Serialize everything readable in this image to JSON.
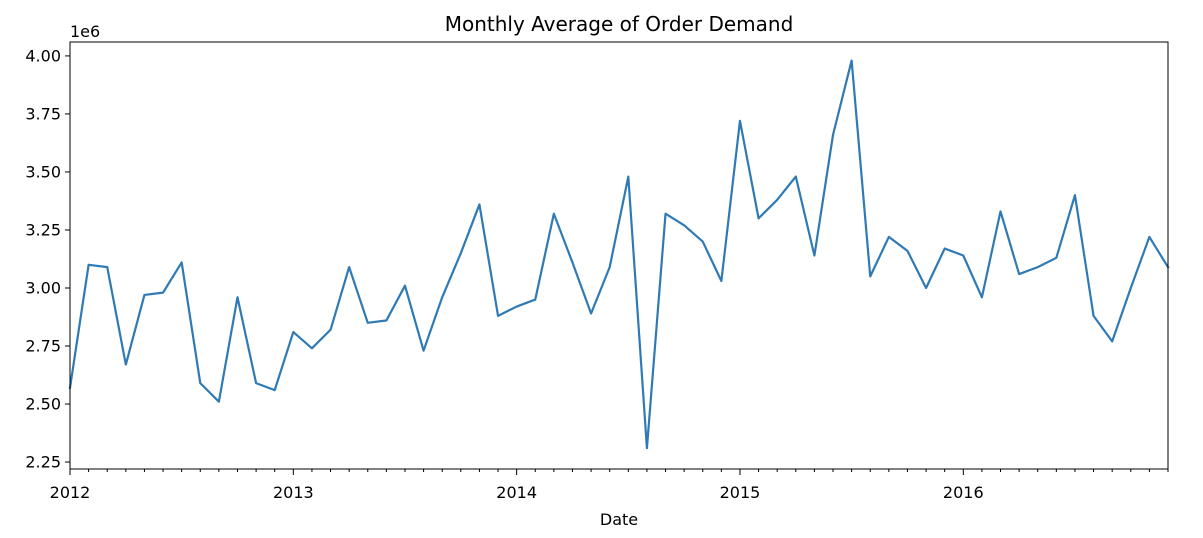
{
  "chart_data": {
    "type": "line",
    "title": "Monthly Average of Order Demand",
    "xlabel": "Date",
    "ylabel": "",
    "y_offset_label": "1e6",
    "y_scale_factor": 1000000,
    "xlim": [
      "2012-01",
      "2016-12"
    ],
    "ylim": [
      2.22,
      4.06
    ],
    "x_ticks": [
      "2012",
      "2013",
      "2014",
      "2015",
      "2016"
    ],
    "y_ticks": [
      "2.25",
      "2.50",
      "2.75",
      "3.00",
      "3.25",
      "3.50",
      "3.75",
      "4.00"
    ],
    "grid": false,
    "legend": "none",
    "color": "#2f7ab5",
    "series": [
      {
        "x": [
          "2012-01",
          "2012-02",
          "2012-03",
          "2012-04",
          "2012-05",
          "2012-06",
          "2012-07",
          "2012-08",
          "2012-09",
          "2012-10",
          "2012-11",
          "2012-12",
          "2013-01",
          "2013-02",
          "2013-03",
          "2013-04",
          "2013-05",
          "2013-06",
          "2013-07",
          "2013-08",
          "2013-09",
          "2013-10",
          "2013-11",
          "2013-12",
          "2014-01",
          "2014-02",
          "2014-03",
          "2014-04",
          "2014-05",
          "2014-06",
          "2014-07",
          "2014-08",
          "2014-09",
          "2014-10",
          "2014-11",
          "2014-12",
          "2015-01",
          "2015-02",
          "2015-03",
          "2015-04",
          "2015-05",
          "2015-06",
          "2015-07",
          "2015-08",
          "2015-09",
          "2015-10",
          "2015-11",
          "2015-12",
          "2016-01",
          "2016-02",
          "2016-03",
          "2016-04",
          "2016-05",
          "2016-06",
          "2016-07",
          "2016-08",
          "2016-09",
          "2016-10",
          "2016-11",
          "2016-12"
        ],
        "values": [
          2.57,
          3.1,
          3.09,
          2.67,
          2.97,
          2.98,
          3.11,
          2.59,
          2.51,
          2.96,
          2.59,
          2.56,
          2.81,
          2.74,
          2.82,
          3.09,
          2.85,
          2.86,
          3.01,
          2.73,
          2.96,
          3.15,
          3.36,
          2.88,
          2.92,
          2.95,
          3.32,
          3.11,
          2.89,
          3.09,
          3.48,
          2.31,
          3.32,
          3.27,
          3.2,
          3.03,
          3.72,
          3.3,
          3.38,
          3.48,
          3.14,
          3.66,
          3.98,
          3.05,
          3.22,
          3.16,
          3.0,
          3.17,
          3.14,
          2.96,
          3.33,
          3.06,
          3.09,
          3.13,
          3.4,
          2.88,
          2.77,
          3.0,
          3.22,
          3.09
        ]
      }
    ]
  }
}
